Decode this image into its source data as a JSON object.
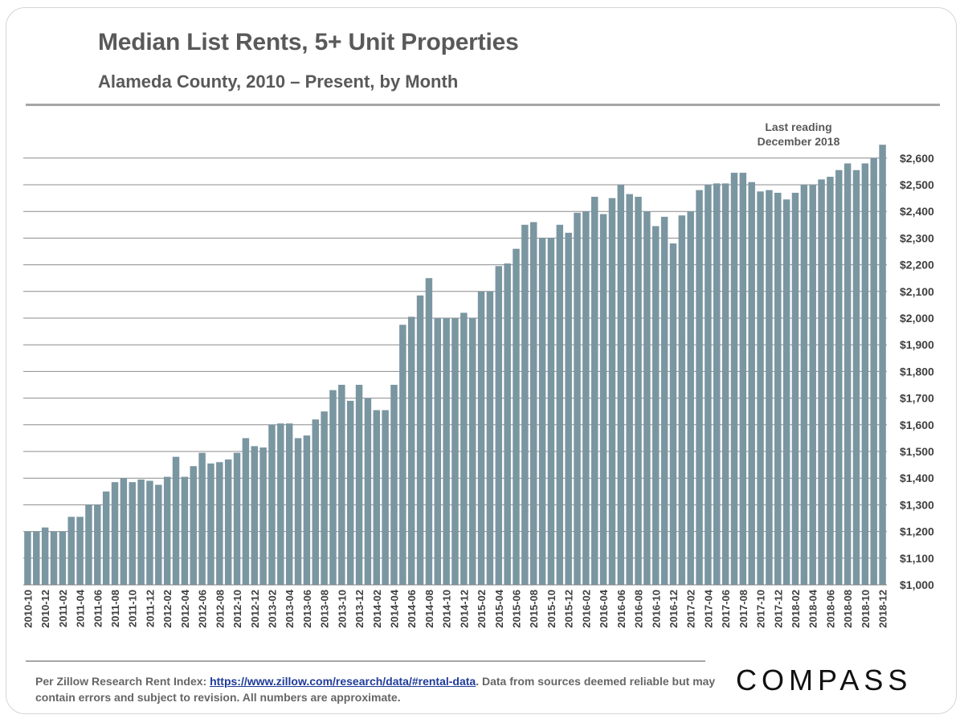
{
  "header": {
    "title": "Median List Rents, 5+ Unit Properties",
    "subtitle": "Alameda County, 2010 – Present, by Month"
  },
  "annotation": {
    "line1": "Last reading",
    "line2": "December 2018"
  },
  "footer": {
    "note_prefix": "Per Zillow Research Rent Index:  ",
    "link_text": "https://www.zillow.com/research/data/#rental-data",
    "note_suffix": ". Data from sources deemed reliable but may contain errors and subject to revision. All numbers are approximate.",
    "logo": "COMPASS"
  },
  "chart_data": {
    "type": "bar",
    "title": "Median List Rents, 5+ Unit Properties",
    "subtitle": "Alameda County, 2010 – Present, by Month",
    "xlabel": "",
    "ylabel": "",
    "ylim": [
      1000,
      2650
    ],
    "yticks": [
      1000,
      1100,
      1200,
      1300,
      1400,
      1500,
      1600,
      1700,
      1800,
      1900,
      2000,
      2100,
      2200,
      2300,
      2400,
      2500,
      2600
    ],
    "ytick_labels": [
      "$1,000",
      "$1,100",
      "$1,200",
      "$1,300",
      "$1,400",
      "$1,500",
      "$1,600",
      "$1,700",
      "$1,800",
      "$1,900",
      "$2,000",
      "$2,100",
      "$2,200",
      "$2,300",
      "$2,400",
      "$2,500",
      "$2,600"
    ],
    "grid": true,
    "bar_color": "#7a96a1",
    "grid_color": "#8c8c8c",
    "categories": [
      "2010-10",
      "2010-11",
      "2010-12",
      "2011-01",
      "2011-02",
      "2011-03",
      "2011-04",
      "2011-05",
      "2011-06",
      "2011-07",
      "2011-08",
      "2011-09",
      "2011-10",
      "2011-11",
      "2011-12",
      "2012-01",
      "2012-02",
      "2012-03",
      "2012-04",
      "2012-05",
      "2012-06",
      "2012-07",
      "2012-08",
      "2012-09",
      "2012-10",
      "2012-11",
      "2012-12",
      "2013-01",
      "2013-02",
      "2013-03",
      "2013-04",
      "2013-05",
      "2013-06",
      "2013-07",
      "2013-08",
      "2013-09",
      "2013-10",
      "2013-11",
      "2013-12",
      "2014-01",
      "2014-02",
      "2014-03",
      "2014-04",
      "2014-05",
      "2014-06",
      "2014-07",
      "2014-08",
      "2014-09",
      "2014-10",
      "2014-11",
      "2014-12",
      "2015-01",
      "2015-02",
      "2015-03",
      "2015-04",
      "2015-05",
      "2015-06",
      "2015-07",
      "2015-08",
      "2015-09",
      "2015-10",
      "2015-11",
      "2015-12",
      "2016-01",
      "2016-02",
      "2016-03",
      "2016-04",
      "2016-05",
      "2016-06",
      "2016-07",
      "2016-08",
      "2016-09",
      "2016-10",
      "2016-11",
      "2016-12",
      "2017-01",
      "2017-02",
      "2017-03",
      "2017-04",
      "2017-05",
      "2017-06",
      "2017-07",
      "2017-08",
      "2017-09",
      "2017-10",
      "2017-11",
      "2017-12",
      "2018-01",
      "2018-02",
      "2018-03",
      "2018-04",
      "2018-05",
      "2018-06",
      "2018-07",
      "2018-08",
      "2018-09",
      "2018-10",
      "2018-11",
      "2018-12"
    ],
    "tick_labels": [
      "2010-10",
      "2010-12",
      "2011-02",
      "2011-04",
      "2011-06",
      "2011-08",
      "2011-10",
      "2011-12",
      "2012-02",
      "2012-04",
      "2012-06",
      "2012-08",
      "2012-10",
      "2012-12",
      "2013-02",
      "2013-04",
      "2013-06",
      "2013-08",
      "2013-10",
      "2013-12",
      "2014-02",
      "2014-04",
      "2014-06",
      "2014-08",
      "2014-10",
      "2014-12",
      "2015-02",
      "2015-04",
      "2015-06",
      "2015-08",
      "2015-10",
      "2015-12",
      "2016-02",
      "2016-04",
      "2016-06",
      "2016-08",
      "2016-10",
      "2016-12",
      "2017-02",
      "2017-04",
      "2017-06",
      "2017-08",
      "2017-10",
      "2017-12",
      "2018-02",
      "2018-04",
      "2018-06",
      "2018-08",
      "2018-10",
      "2018-12"
    ],
    "values": [
      1200,
      1200,
      1215,
      1200,
      1200,
      1255,
      1255,
      1300,
      1300,
      1350,
      1385,
      1400,
      1385,
      1395,
      1390,
      1375,
      1405,
      1480,
      1405,
      1445,
      1495,
      1455,
      1460,
      1470,
      1495,
      1550,
      1520,
      1515,
      1600,
      1605,
      1605,
      1550,
      1560,
      1620,
      1650,
      1730,
      1750,
      1690,
      1750,
      1700,
      1655,
      1655,
      1750,
      1975,
      2005,
      2085,
      2150,
      2000,
      2000,
      2000,
      2020,
      2000,
      2100,
      2100,
      2195,
      2205,
      2260,
      2350,
      2360,
      2300,
      2300,
      2350,
      2320,
      2395,
      2400,
      2455,
      2390,
      2450,
      2500,
      2465,
      2455,
      2400,
      2345,
      2380,
      2280,
      2385,
      2400,
      2480,
      2500,
      2505,
      2505,
      2545,
      2545,
      2510,
      2475,
      2480,
      2470,
      2445,
      2470,
      2500,
      2500,
      2520,
      2530,
      2555,
      2580,
      2555,
      2580,
      2600,
      2650
    ]
  }
}
